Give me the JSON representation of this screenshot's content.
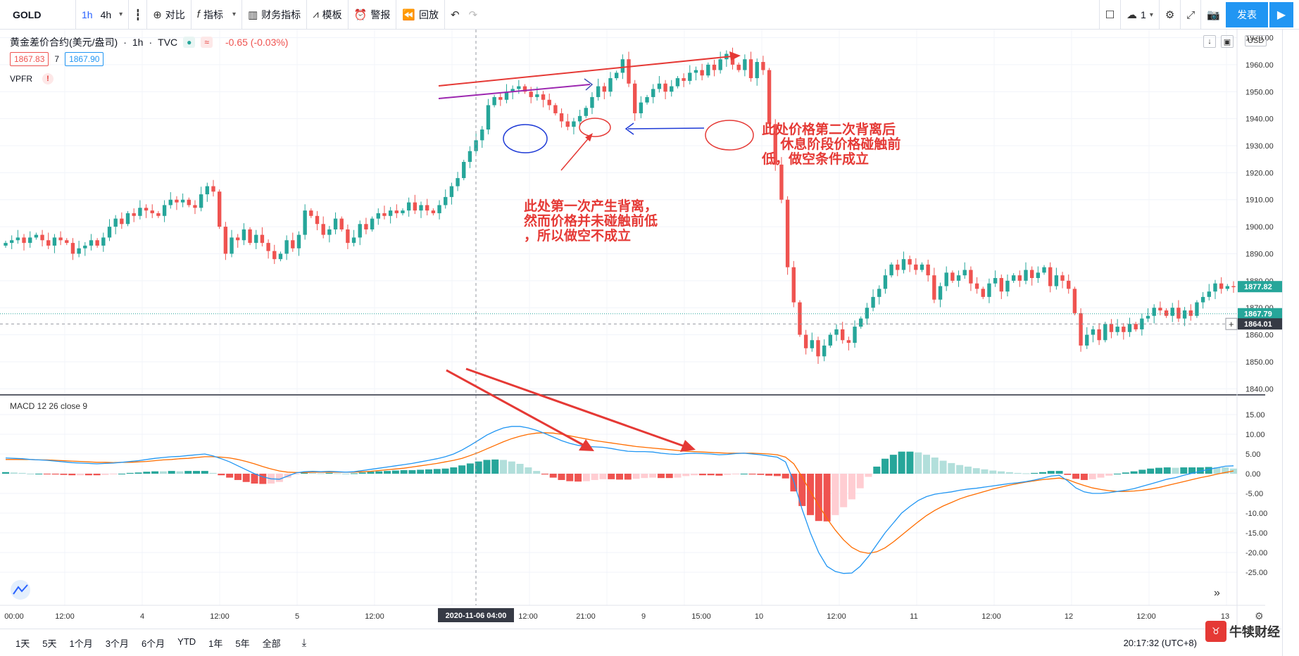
{
  "toolbar": {
    "symbol": "GOLD",
    "interval_1h": "1h",
    "interval_4h": "4h",
    "compare": "对比",
    "indicators": "指标",
    "financials": "财务指标",
    "templates": "模板",
    "alert": "警报",
    "replay": "回放",
    "layout_count": "1",
    "publish": "发表"
  },
  "legend": {
    "name": "黄金差价合约(美元/盎司)",
    "interval": "1h",
    "source": "TVC",
    "change": "-0.65 (-0.03%)",
    "bid": "1867.83",
    "spread": "7",
    "ask": "1867.90",
    "vpfr": "VPFR",
    "macd": "MACD 12 26 close 9",
    "unit": "USD"
  },
  "price_axis": {
    "ticks": [
      "1970.00",
      "1960.00",
      "1950.00",
      "1940.00",
      "1930.00",
      "1920.00",
      "1910.00",
      "1900.00",
      "1890.00",
      "1880.00",
      "1870.00",
      "1860.00",
      "1850.00",
      "1840.00"
    ],
    "label_last": "1877.82",
    "label_a": "1867.79",
    "label_cross": "1864.01"
  },
  "macd_axis": {
    "ticks": [
      "15.00",
      "10.00",
      "5.00",
      "0.00",
      "-5.00",
      "-10.00",
      "-15.00",
      "-20.00",
      "-25.00"
    ]
  },
  "time_axis": {
    "ticks": [
      "00:00",
      "12:00",
      "4",
      "12:00",
      "5",
      "12:00",
      "12:00",
      "21:00",
      "9",
      "15:00",
      "10",
      "12:00",
      "11",
      "12:00",
      "12",
      "12:00",
      "13"
    ],
    "cursor_date": "2020-11-06",
    "cursor_time": "04:00"
  },
  "annotations": {
    "first": "此处第一次产生背离，\n然而价格并未碰触前低\n，所以做空不成立",
    "second": "此处价格第二次背离后\n     休息阶段价格碰触前\n低，做空条件成立"
  },
  "bottom": {
    "ranges": [
      "1天",
      "5天",
      "1个月",
      "3个月",
      "6个月",
      "YTD",
      "1年",
      "5年",
      "全部"
    ],
    "clock": "20:17:32 (UTC+8)"
  },
  "watermark": "牛犊财经",
  "colors": {
    "up": "#26a69a",
    "down": "#ef5350",
    "macd": "#2196f3",
    "signal": "#ff6d00",
    "accent": "#2962ff"
  },
  "chart_data": {
    "type": "candlestick",
    "interval": "1h",
    "ylim": [
      1838,
      1973
    ],
    "close": [
      1894,
      1895,
      1896,
      1894,
      1896,
      1897,
      1895,
      1893,
      1896,
      1895,
      1894,
      1890,
      1892,
      1893,
      1895,
      1893,
      1896,
      1900,
      1903,
      1901,
      1905,
      1904,
      1907,
      1906,
      1905,
      1904,
      1908,
      1910,
      1909,
      1910,
      1908,
      1907,
      1912,
      1915,
      1913,
      1900,
      1890,
      1896,
      1895,
      1899,
      1894,
      1897,
      1894,
      1891,
      1888,
      1890,
      1895,
      1892,
      1897,
      1906,
      1904,
      1901,
      1897,
      1899,
      1903,
      1899,
      1894,
      1896,
      1901,
      1899,
      1903,
      1905,
      1904,
      1906,
      1905,
      1906,
      1909,
      1906,
      1908,
      1906,
      1905,
      1908,
      1911,
      1915,
      1918,
      1924,
      1928,
      1932,
      1936,
      1945,
      1948,
      1947,
      1950,
      1951,
      1952,
      1950,
      1948,
      1949,
      1947,
      1945,
      1942,
      1939,
      1937,
      1939,
      1941,
      1944,
      1948,
      1952,
      1950,
      1955,
      1957,
      1962,
      1953,
      1942,
      1946,
      1948,
      1951,
      1953,
      1950,
      1952,
      1955,
      1954,
      1957,
      1958,
      1956,
      1960,
      1958,
      1962,
      1964,
      1960,
      1958,
      1962,
      1955,
      1961,
      1958,
      1938,
      1923,
      1910,
      1885,
      1872,
      1860,
      1855,
      1858,
      1852,
      1856,
      1860,
      1862,
      1858,
      1857,
      1863,
      1866,
      1870,
      1874,
      1877,
      1882,
      1886,
      1884,
      1888,
      1886,
      1884,
      1886,
      1882,
      1873,
      1878,
      1883,
      1880,
      1882,
      1884,
      1879,
      1877,
      1874,
      1879,
      1881,
      1876,
      1880,
      1882,
      1880,
      1884,
      1881,
      1883,
      1885,
      1878,
      1882,
      1880,
      1877,
      1868,
      1856,
      1860,
      1862,
      1858,
      1864,
      1861,
      1863,
      1861,
      1864,
      1862,
      1866,
      1867,
      1870,
      1869,
      1867,
      1870,
      1866,
      1869,
      1867,
      1872,
      1874,
      1876,
      1879,
      1877,
      1878,
      1877.82
    ],
    "macd": [
      4.0,
      3.9,
      3.8,
      3.6,
      3.5,
      3.4,
      3.2,
      3.0,
      2.8,
      2.7,
      2.6,
      2.5,
      2.6,
      2.7,
      2.9,
      3.1,
      3.3,
      3.6,
      3.9,
      4.1,
      4.3,
      4.4,
      4.6,
      4.8,
      5.0,
      4.5,
      3.8,
      3.0,
      2.0,
      1.0,
      0.0,
      -0.8,
      -1.3,
      -1.4,
      -0.6,
      0.2,
      0.5,
      0.6,
      0.5,
      0.6,
      0.5,
      0.4,
      0.5,
      0.8,
      1.1,
      1.4,
      1.7,
      2.0,
      2.3,
      2.6,
      3.0,
      3.4,
      3.8,
      4.3,
      5.0,
      6.0,
      7.2,
      8.5,
      9.8,
      10.8,
      11.6,
      12.0,
      12.0,
      11.6,
      11.0,
      10.2,
      9.3,
      8.4,
      7.7,
      7.2,
      6.9,
      6.8,
      6.7,
      6.4,
      6.0,
      5.7,
      5.6,
      5.6,
      5.5,
      5.2,
      5.0,
      4.9,
      5.1,
      5.2,
      5.1,
      5.0,
      4.8,
      4.9,
      5.1,
      5.2,
      5.0,
      4.8,
      4.5,
      4.2,
      3.0,
      -2.0,
      -9.0,
      -15.0,
      -20.0,
      -23.5,
      -24.8,
      -25.3,
      -25.2,
      -23.5,
      -21.0,
      -18.0,
      -15.0,
      -12.5,
      -10.0,
      -8.3,
      -6.8,
      -5.8,
      -5.2,
      -4.9,
      -4.6,
      -4.2,
      -3.9,
      -3.7,
      -3.4,
      -3.1,
      -2.8,
      -2.5,
      -2.3,
      -2.0,
      -1.6,
      -1.1,
      -0.6,
      -0.4,
      -1.8,
      -3.6,
      -4.6,
      -5.0,
      -5.0,
      -4.8,
      -4.5,
      -4.2,
      -3.8,
      -3.2,
      -2.6,
      -2.0,
      -1.4,
      -1.0,
      -0.4,
      0.1,
      0.6,
      1.1,
      1.5,
      1.9,
      2.0
    ],
    "signal": [
      3.6,
      3.6,
      3.6,
      3.6,
      3.5,
      3.5,
      3.4,
      3.3,
      3.2,
      3.1,
      3.0,
      2.9,
      2.9,
      2.8,
      2.9,
      2.9,
      3.0,
      3.1,
      3.3,
      3.5,
      3.6,
      3.8,
      3.9,
      4.1,
      4.3,
      4.3,
      4.2,
      4.0,
      3.6,
      3.1,
      2.5,
      1.8,
      1.2,
      0.7,
      0.4,
      0.3,
      0.3,
      0.4,
      0.4,
      0.4,
      0.4,
      0.4,
      0.4,
      0.5,
      0.6,
      0.8,
      1.0,
      1.2,
      1.4,
      1.7,
      2.0,
      2.3,
      2.6,
      3.0,
      3.4,
      3.9,
      4.6,
      5.4,
      6.3,
      7.2,
      8.1,
      8.9,
      9.5,
      10.0,
      10.3,
      10.4,
      10.3,
      10.0,
      9.6,
      9.2,
      8.8,
      8.4,
      8.1,
      7.8,
      7.5,
      7.2,
      6.9,
      6.7,
      6.5,
      6.3,
      6.1,
      5.9,
      5.7,
      5.6,
      5.5,
      5.4,
      5.3,
      5.2,
      5.2,
      5.2,
      5.2,
      5.1,
      5.0,
      4.8,
      4.2,
      2.5,
      -0.8,
      -4.5,
      -8.0,
      -11.4,
      -14.3,
      -16.8,
      -18.7,
      -19.8,
      -20.2,
      -19.8,
      -18.8,
      -17.3,
      -15.6,
      -13.9,
      -12.2,
      -10.6,
      -9.3,
      -8.2,
      -7.3,
      -6.4,
      -5.7,
      -5.1,
      -4.5,
      -3.9,
      -3.4,
      -2.9,
      -2.5,
      -2.1,
      -1.8,
      -1.5,
      -1.3,
      -1.1,
      -1.5,
      -2.3,
      -3.0,
      -3.6,
      -4.0,
      -4.3,
      -4.5,
      -4.5,
      -4.4,
      -4.2,
      -3.9,
      -3.5,
      -3.0,
      -2.5,
      -2.0,
      -1.5,
      -1.0,
      -0.6,
      -0.1,
      0.3,
      0.7
    ]
  }
}
